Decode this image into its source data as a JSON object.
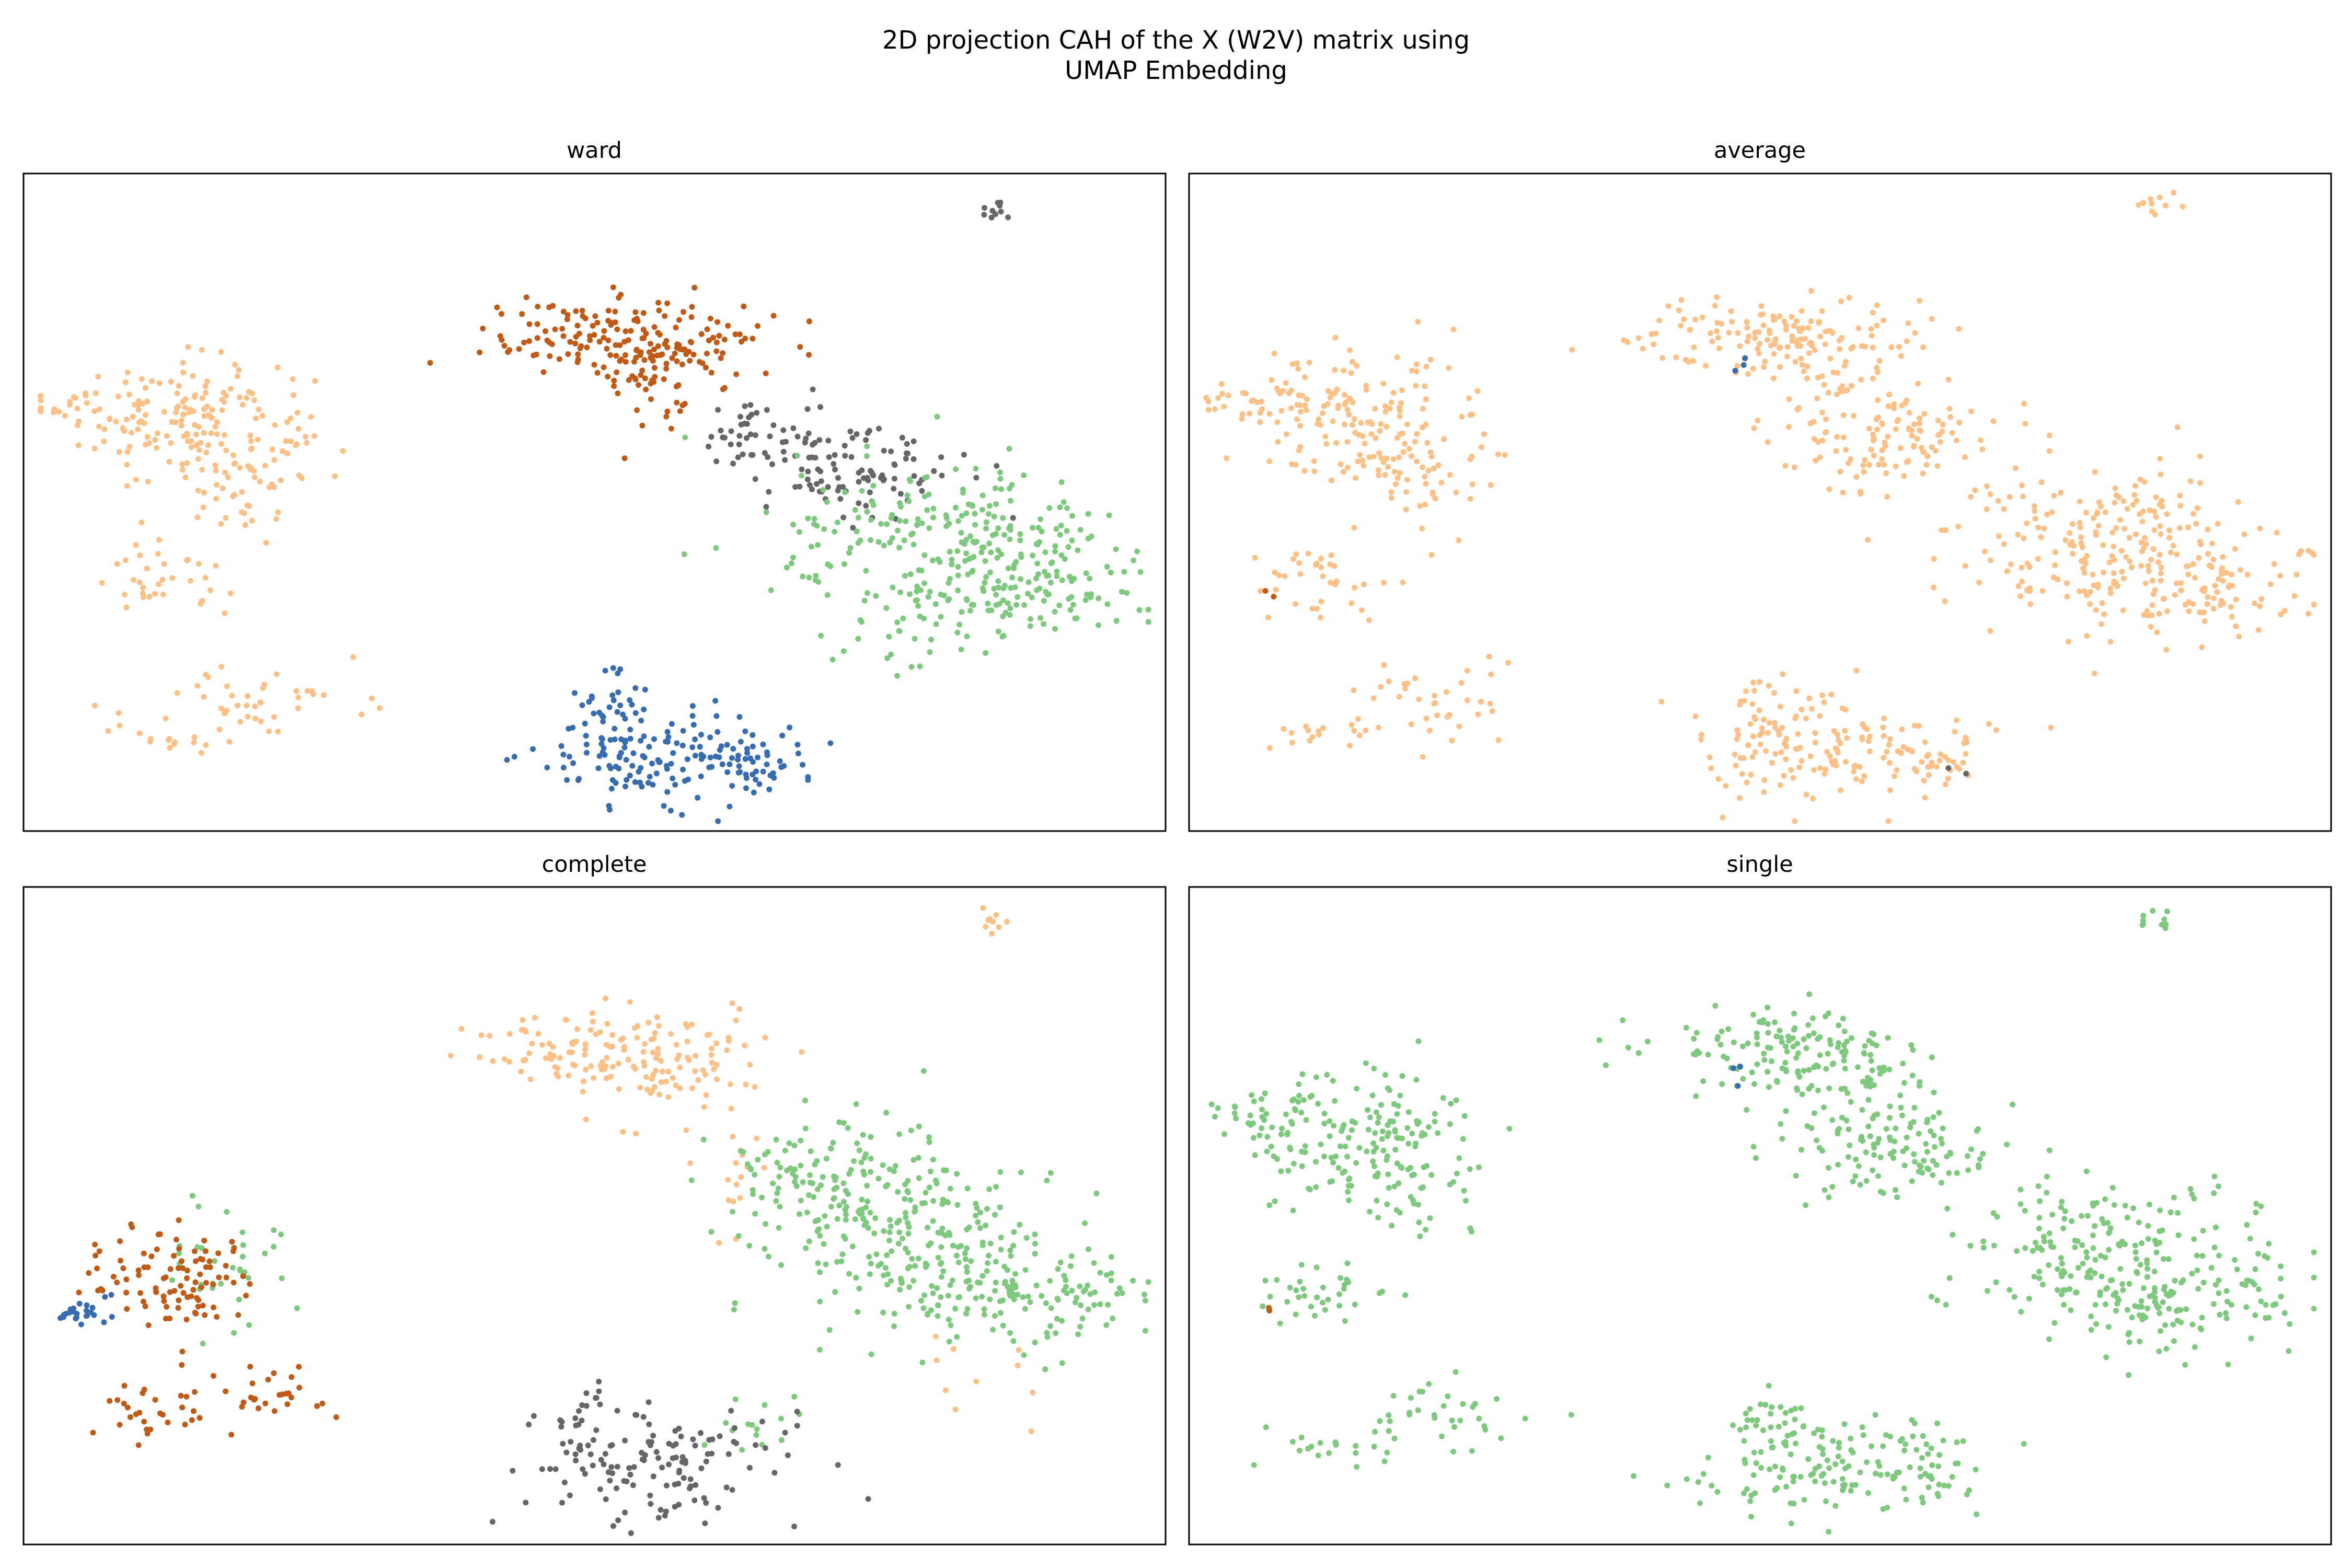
{
  "figure": {
    "title_line1": "2D projection CAH of the X (W2V) matrix using",
    "title_line2": "UMAP Embedding"
  },
  "cluster_colors": {
    "blue": "#386cb0",
    "orange": "#fdc086",
    "green": "#7fc97f",
    "brown": "#bf5b17",
    "grey": "#666666"
  },
  "chart_data": [
    {
      "type": "scatter",
      "title": "ward",
      "axes_visible": false,
      "marker": "dot",
      "clusters": [
        {
          "color": "orange",
          "regions": [
            [
              0.06,
              0.65,
              0.03,
              0.02,
              30
            ],
            [
              0.15,
              0.62,
              0.05,
              0.05,
              160
            ],
            [
              0.21,
              0.53,
              0.03,
              0.04,
              35
            ],
            [
              0.12,
              0.38,
              0.03,
              0.03,
              35
            ],
            [
              0.22,
              0.2,
              0.04,
              0.03,
              40
            ],
            [
              0.12,
              0.15,
              0.03,
              0.015,
              18
            ]
          ]
        },
        {
          "color": "brown",
          "regions": [
            [
              0.5,
              0.75,
              0.05,
              0.03,
              110
            ],
            [
              0.58,
              0.73,
              0.04,
              0.04,
              70
            ],
            [
              0.55,
              0.7,
              0.02,
              0.06,
              35
            ]
          ]
        },
        {
          "color": "grey",
          "regions": [
            [
              0.85,
              0.95,
              0.01,
              0.01,
              10
            ],
            [
              0.72,
              0.56,
              0.05,
              0.04,
              110
            ],
            [
              0.64,
              0.6,
              0.03,
              0.03,
              30
            ]
          ]
        },
        {
          "color": "green",
          "regions": [
            [
              0.8,
              0.44,
              0.07,
              0.06,
              200
            ],
            [
              0.86,
              0.36,
              0.04,
              0.04,
              70
            ],
            [
              0.93,
              0.37,
              0.03,
              0.03,
              35
            ],
            [
              0.77,
              0.31,
              0.03,
              0.04,
              30
            ],
            [
              0.9,
              0.45,
              0.03,
              0.02,
              20
            ]
          ]
        },
        {
          "color": "blue",
          "regions": [
            [
              0.56,
              0.12,
              0.06,
              0.04,
              150
            ],
            [
              0.51,
              0.18,
              0.02,
              0.03,
              25
            ],
            [
              0.65,
              0.1,
              0.02,
              0.02,
              25
            ]
          ]
        }
      ]
    },
    {
      "type": "scatter",
      "title": "average",
      "axes_visible": false,
      "marker": "dot",
      "clusters": [
        {
          "color": "orange",
          "regions": [
            [
              0.85,
              0.95,
              0.01,
              0.01,
              10
            ],
            [
              0.5,
              0.75,
              0.05,
              0.03,
              100
            ],
            [
              0.58,
              0.73,
              0.04,
              0.04,
              65
            ],
            [
              0.62,
              0.6,
              0.05,
              0.04,
              120
            ],
            [
              0.8,
              0.44,
              0.07,
              0.06,
              200
            ],
            [
              0.86,
              0.36,
              0.04,
              0.04,
              60
            ],
            [
              0.93,
              0.37,
              0.03,
              0.03,
              30
            ],
            [
              0.06,
              0.65,
              0.03,
              0.02,
              30
            ],
            [
              0.15,
              0.62,
              0.05,
              0.05,
              150
            ],
            [
              0.21,
              0.53,
              0.03,
              0.04,
              35
            ],
            [
              0.12,
              0.38,
              0.03,
              0.03,
              35
            ],
            [
              0.22,
              0.2,
              0.04,
              0.03,
              35
            ],
            [
              0.12,
              0.15,
              0.03,
              0.015,
              18
            ],
            [
              0.56,
              0.12,
              0.06,
              0.04,
              140
            ],
            [
              0.51,
              0.18,
              0.02,
              0.03,
              25
            ],
            [
              0.65,
              0.1,
              0.02,
              0.02,
              22
            ]
          ]
        },
        {
          "color": "blue",
          "regions": [
            [
              0.48,
              0.71,
              0.003,
              0.01,
              3
            ]
          ]
        },
        {
          "color": "brown",
          "regions": [
            [
              0.07,
              0.36,
              0.003,
              0.005,
              2
            ]
          ]
        },
        {
          "color": "grey",
          "regions": [
            [
              0.67,
              0.09,
              0.003,
              0.005,
              2
            ]
          ]
        }
      ]
    },
    {
      "type": "scatter",
      "title": "complete",
      "axes_visible": false,
      "marker": "dot",
      "clusters": [
        {
          "color": "orange",
          "regions": [
            [
              0.85,
              0.95,
              0.01,
              0.01,
              10
            ],
            [
              0.5,
              0.75,
              0.05,
              0.03,
              100
            ],
            [
              0.58,
              0.73,
              0.04,
              0.04,
              65
            ],
            [
              0.62,
              0.55,
              0.02,
              0.05,
              15
            ],
            [
              0.85,
              0.25,
              0.03,
              0.03,
              10
            ]
          ]
        },
        {
          "color": "green",
          "regions": [
            [
              0.72,
              0.55,
              0.06,
              0.05,
              150
            ],
            [
              0.8,
              0.44,
              0.07,
              0.06,
              200
            ],
            [
              0.86,
              0.36,
              0.04,
              0.04,
              60
            ],
            [
              0.93,
              0.37,
              0.03,
              0.03,
              30
            ],
            [
              0.18,
              0.42,
              0.03,
              0.05,
              35
            ],
            [
              0.64,
              0.18,
              0.02,
              0.03,
              15
            ]
          ]
        },
        {
          "color": "brown",
          "regions": [
            [
              0.08,
              0.4,
              0.02,
              0.03,
              20
            ],
            [
              0.14,
              0.4,
              0.03,
              0.04,
              80
            ],
            [
              0.12,
              0.2,
              0.03,
              0.03,
              30
            ],
            [
              0.22,
              0.22,
              0.03,
              0.02,
              25
            ]
          ]
        },
        {
          "color": "blue",
          "regions": [
            [
              0.04,
              0.35,
              0.01,
              0.005,
              18
            ],
            [
              0.07,
              0.37,
              0.01,
              0.01,
              6
            ]
          ]
        },
        {
          "color": "grey",
          "regions": [
            [
              0.56,
              0.12,
              0.06,
              0.04,
              130
            ],
            [
              0.5,
              0.2,
              0.02,
              0.03,
              20
            ]
          ]
        }
      ]
    },
    {
      "type": "scatter",
      "title": "single",
      "axes_visible": false,
      "marker": "dot",
      "clusters": [
        {
          "color": "green",
          "regions": [
            [
              0.85,
              0.95,
              0.01,
              0.01,
              10
            ],
            [
              0.5,
              0.75,
              0.05,
              0.03,
              100
            ],
            [
              0.58,
              0.73,
              0.04,
              0.04,
              65
            ],
            [
              0.62,
              0.6,
              0.05,
              0.04,
              120
            ],
            [
              0.8,
              0.44,
              0.07,
              0.06,
              200
            ],
            [
              0.86,
              0.36,
              0.04,
              0.04,
              60
            ],
            [
              0.93,
              0.37,
              0.03,
              0.03,
              30
            ],
            [
              0.06,
              0.65,
              0.03,
              0.02,
              30
            ],
            [
              0.15,
              0.62,
              0.05,
              0.05,
              150
            ],
            [
              0.21,
              0.53,
              0.03,
              0.04,
              35
            ],
            [
              0.12,
              0.38,
              0.03,
              0.03,
              35
            ],
            [
              0.22,
              0.2,
              0.04,
              0.03,
              35
            ],
            [
              0.12,
              0.15,
              0.03,
              0.015,
              18
            ],
            [
              0.56,
              0.12,
              0.06,
              0.04,
              140
            ],
            [
              0.51,
              0.18,
              0.02,
              0.03,
              25
            ],
            [
              0.65,
              0.1,
              0.02,
              0.02,
              22
            ]
          ]
        },
        {
          "color": "blue",
          "regions": [
            [
              0.48,
              0.71,
              0.003,
              0.01,
              3
            ]
          ]
        },
        {
          "color": "brown",
          "regions": [
            [
              0.07,
              0.36,
              0.003,
              0.005,
              2
            ]
          ]
        }
      ]
    }
  ]
}
